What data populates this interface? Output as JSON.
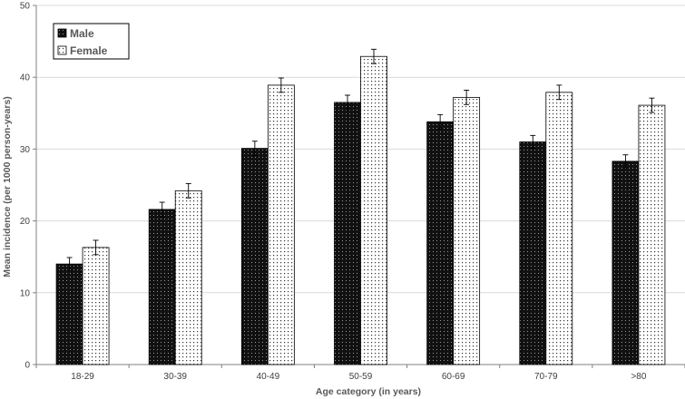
{
  "chart_data": {
    "type": "bar",
    "title": "",
    "xlabel": "Age category (in years)",
    "ylabel": "Mean incidence (per 1000 person-years)",
    "categories": [
      "18-29",
      "30-39",
      "40-49",
      "50-59",
      "60-69",
      "70-79",
      ">80"
    ],
    "ylim": [
      0,
      50
    ],
    "yticks": [
      0,
      10,
      20,
      30,
      40,
      50
    ],
    "grid": "horizontal",
    "legend_position": "top-left",
    "series": [
      {
        "name": "Male",
        "pattern": "dark-dotted",
        "color": "#1a1a1a",
        "values": [
          14.0,
          21.6,
          30.1,
          36.5,
          33.8,
          31.0,
          28.3
        ],
        "error": [
          0.9,
          1.0,
          1.0,
          1.0,
          1.0,
          0.9,
          0.9
        ]
      },
      {
        "name": "Female",
        "pattern": "light-dotted",
        "color": "#ffffff",
        "values": [
          16.3,
          24.2,
          38.9,
          42.9,
          37.2,
          37.9,
          36.1
        ],
        "error": [
          1.0,
          1.0,
          1.0,
          1.0,
          1.0,
          1.0,
          1.0
        ]
      }
    ]
  }
}
